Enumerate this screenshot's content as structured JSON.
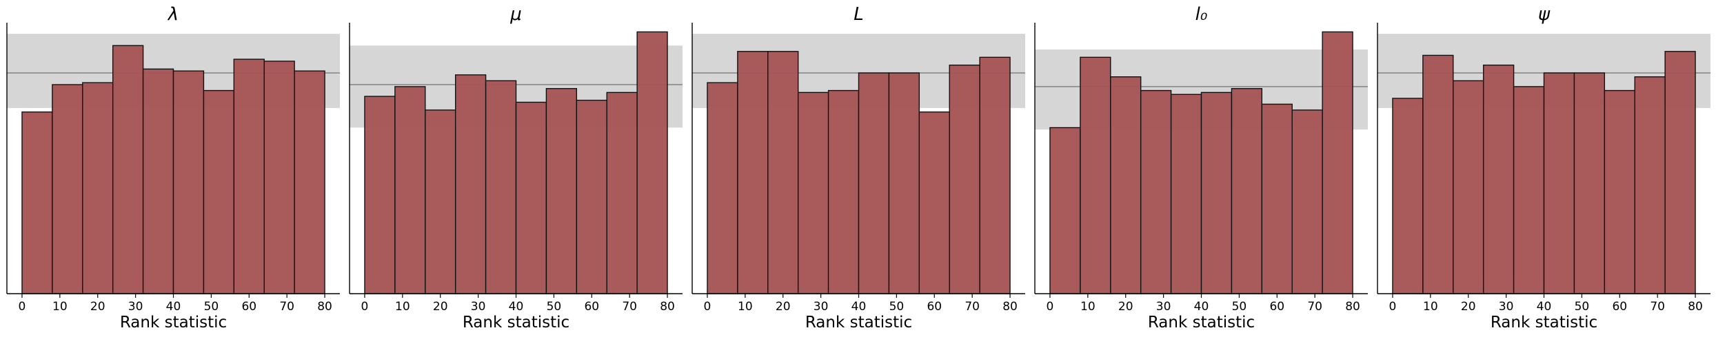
{
  "chart_data": [
    {
      "type": "bar",
      "title": "λ",
      "xlabel": "Rank statistic",
      "ylabel": "",
      "xlim": [
        -4,
        84
      ],
      "ylim": [
        0,
        138
      ],
      "xticks": [
        0,
        10,
        20,
        30,
        40,
        50,
        60,
        70,
        80
      ],
      "bin_edges": [
        0,
        8,
        16,
        24,
        32,
        40,
        48,
        56,
        64,
        72,
        80
      ],
      "values": [
        93,
        107,
        108,
        127,
        115,
        114,
        104,
        120,
        119,
        114
      ],
      "band": [
        95,
        133
      ],
      "mean_line": 113
    },
    {
      "type": "bar",
      "title": "μ",
      "xlabel": "Rank statistic",
      "ylabel": "",
      "xlim": [
        -4,
        84
      ],
      "ylim": [
        0,
        138
      ],
      "xticks": [
        0,
        10,
        20,
        30,
        40,
        50,
        60,
        70,
        80
      ],
      "bin_edges": [
        0,
        8,
        16,
        24,
        32,
        40,
        48,
        56,
        64,
        72,
        80
      ],
      "values": [
        101,
        106,
        94,
        112,
        109,
        98,
        105,
        99,
        103,
        134
      ],
      "band": [
        85,
        127
      ],
      "mean_line": 107
    },
    {
      "type": "bar",
      "title": "L",
      "xlabel": "Rank statistic",
      "ylabel": "",
      "xlim": [
        -4,
        84
      ],
      "ylim": [
        0,
        138
      ],
      "xticks": [
        0,
        10,
        20,
        30,
        40,
        50,
        60,
        70,
        80
      ],
      "bin_edges": [
        0,
        8,
        16,
        24,
        32,
        40,
        48,
        56,
        64,
        72,
        80
      ],
      "values": [
        108,
        124,
        124,
        103,
        104,
        113,
        113,
        93,
        117,
        121
      ],
      "band": [
        95,
        133
      ],
      "mean_line": 113
    },
    {
      "type": "bar",
      "title": "l₀",
      "xlabel": "Rank statistic",
      "ylabel": "",
      "xlim": [
        -4,
        84
      ],
      "ylim": [
        0,
        138
      ],
      "xticks": [
        0,
        10,
        20,
        30,
        40,
        50,
        60,
        70,
        80
      ],
      "bin_edges": [
        0,
        8,
        16,
        24,
        32,
        40,
        48,
        56,
        64,
        72,
        80
      ],
      "values": [
        85,
        121,
        111,
        104,
        102,
        103,
        105,
        97,
        94,
        134
      ],
      "band": [
        84,
        125
      ],
      "mean_line": 106
    },
    {
      "type": "bar",
      "title": "ψ",
      "xlabel": "Rank statistic",
      "ylabel": "",
      "xlim": [
        -4,
        84
      ],
      "ylim": [
        0,
        138
      ],
      "xticks": [
        0,
        10,
        20,
        30,
        40,
        50,
        60,
        70,
        80
      ],
      "bin_edges": [
        0,
        8,
        16,
        24,
        32,
        40,
        48,
        56,
        64,
        72,
        80
      ],
      "values": [
        100,
        122,
        109,
        117,
        106,
        113,
        113,
        104,
        111,
        124
      ],
      "band": [
        95,
        133
      ],
      "mean_line": 113
    }
  ],
  "colors": {
    "bar_fill": "#a65556",
    "bar_edge": "#111111",
    "band": "#d6d6d6",
    "mean_line": "#888888",
    "axis": "#000000"
  }
}
